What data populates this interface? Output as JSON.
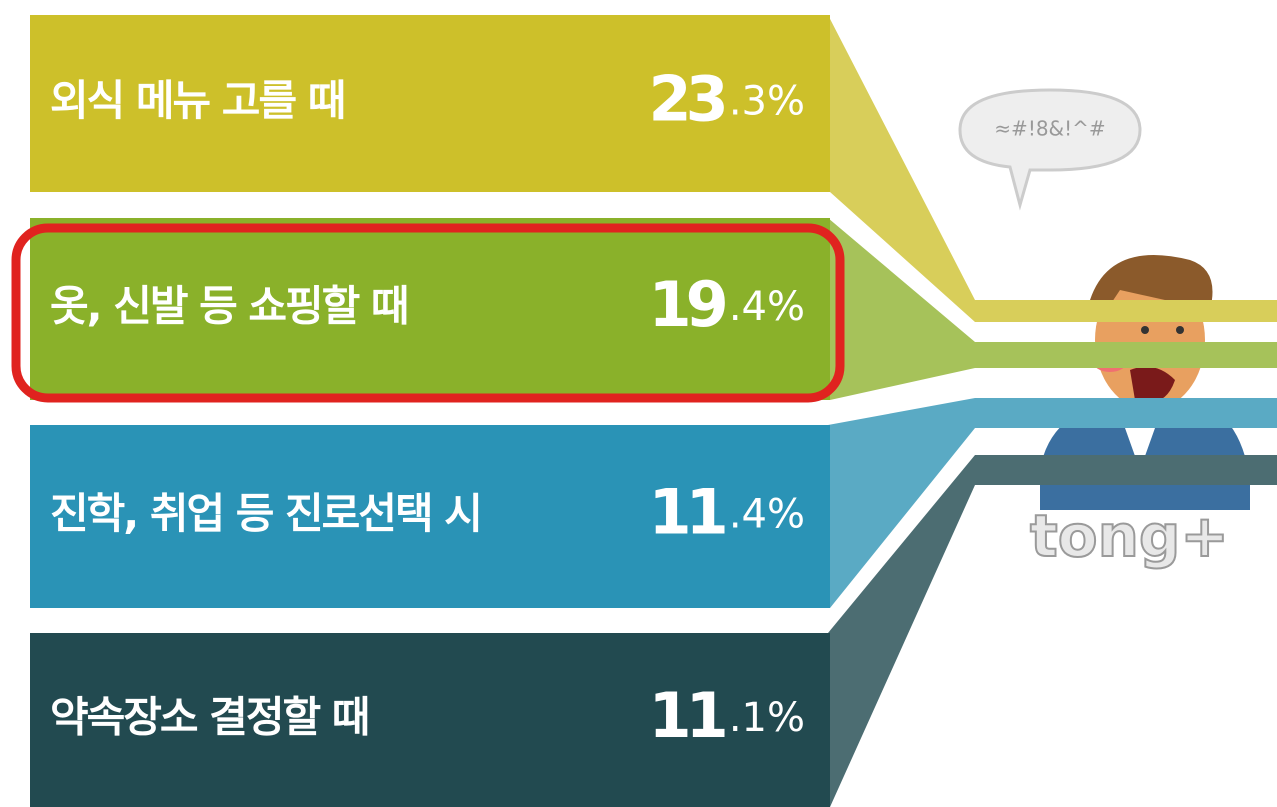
{
  "items": [
    {
      "label": "외식 메뉴 고를 때",
      "value": "23.3%",
      "color": "#cdc02a",
      "tail": "#d8ce5a"
    },
    {
      "label": "옷, 신발 등 쇼핑할 때",
      "value": "19.4%",
      "color": "#8ab12a",
      "tail": "#a6c25a"
    },
    {
      "label": "진학, 취업 등 진로선택 시",
      "value": "11.4%",
      "color": "#2a93b6",
      "tail": "#5aaac4"
    },
    {
      "label": "약속장소 결정할 때",
      "value": "11.1%",
      "color": "#224a50",
      "tail": "#4c6d72"
    }
  ],
  "watermark": "tong+"
}
